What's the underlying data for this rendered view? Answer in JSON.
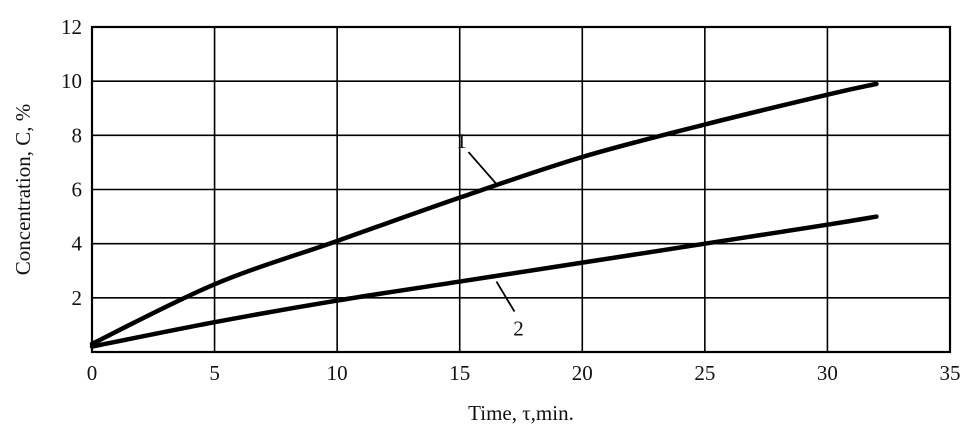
{
  "chart_data": {
    "type": "line",
    "title": "",
    "xlabel": "Time, τ,min.",
    "ylabel": "Concentration, C, %",
    "xlim": [
      0,
      35
    ],
    "ylim": [
      0,
      12
    ],
    "x_ticks": [
      0,
      5,
      10,
      15,
      20,
      25,
      30,
      35
    ],
    "y_ticks": [
      2,
      4,
      6,
      8,
      10,
      12
    ],
    "grid": true,
    "series": [
      {
        "label": "1",
        "x": [
          0,
          5,
          10,
          15,
          20,
          25,
          30,
          32
        ],
        "y": [
          0.3,
          2.5,
          4.1,
          5.7,
          7.2,
          8.4,
          9.5,
          9.9
        ]
      },
      {
        "label": "2",
        "x": [
          0,
          5,
          10,
          15,
          20,
          25,
          30,
          32
        ],
        "y": [
          0.2,
          1.1,
          1.9,
          2.6,
          3.3,
          4.0,
          4.7,
          5.0
        ]
      }
    ],
    "annotations": [
      {
        "text": "1",
        "series": 0,
        "point": [
          16.5,
          6.2
        ]
      },
      {
        "text": "2",
        "series": 1,
        "point": [
          16.5,
          2.6
        ]
      }
    ]
  }
}
